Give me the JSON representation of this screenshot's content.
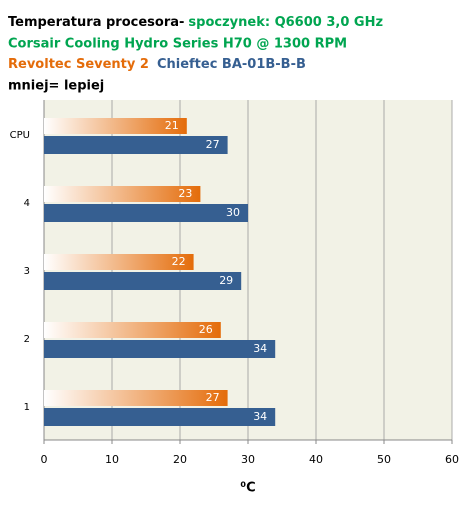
{
  "chart_data": {
    "type": "hbar",
    "title": "Temperatura procesora-",
    "subtitle": "spoczynek: Q6600 3,0 GHz",
    "subtitle2": "Corsair Cooling Hydro Series H70 @ 1300 RPM",
    "note": "mniej= lepiej",
    "x_label": "⁰C",
    "categories": [
      "CPU",
      "4",
      "3",
      "2",
      "1"
    ],
    "series": [
      {
        "name": "Revoltec Seventy 2",
        "color": "#e46c0a",
        "values": [
          21,
          23,
          22,
          26,
          27
        ]
      },
      {
        "name": "Chieftec BA-01B-B-B",
        "color": "#365f91",
        "values": [
          27,
          30,
          29,
          34,
          34
        ]
      }
    ],
    "xlim": [
      0,
      60
    ],
    "xticks": [
      0,
      10,
      20,
      30,
      40,
      50,
      60
    ],
    "grid": true
  }
}
